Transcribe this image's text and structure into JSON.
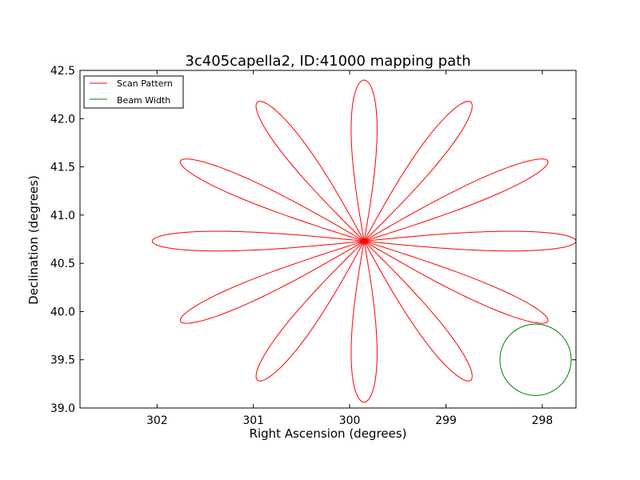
{
  "chart_data": {
    "type": "line",
    "title": "3c405capella2, ID:41000 mapping path",
    "xlabel": "Right Ascension (degrees)",
    "ylabel": "Declination (degrees)",
    "xlim": [
      302.8,
      297.65
    ],
    "ylim": [
      39.0,
      42.5
    ],
    "xticks": [
      302,
      301,
      300,
      299,
      298
    ],
    "xtick_labels": [
      "302",
      "301",
      "300",
      "299",
      "298"
    ],
    "yticks": [
      39.0,
      39.5,
      40.0,
      40.5,
      41.0,
      41.5,
      42.0,
      42.5
    ],
    "ytick_labels": [
      "39.0",
      "39.5",
      "40.0",
      "40.5",
      "41.0",
      "41.5",
      "42.0",
      "42.5"
    ],
    "grid": false,
    "legend": "top-left",
    "series": [
      {
        "name": "Scan Pattern",
        "color": "#ff0000",
        "pattern": "rose",
        "center": [
          299.85,
          40.73
        ],
        "petals": 12,
        "petal_length_x": 2.2,
        "petal_length_y": 1.67,
        "petal_half_width_deg": 7.5
      },
      {
        "name": "Beam Width",
        "color": "#008000",
        "pattern": "circle",
        "center": [
          298.07,
          39.5
        ],
        "radius_x": 0.37,
        "radius_y": 0.37
      }
    ]
  }
}
